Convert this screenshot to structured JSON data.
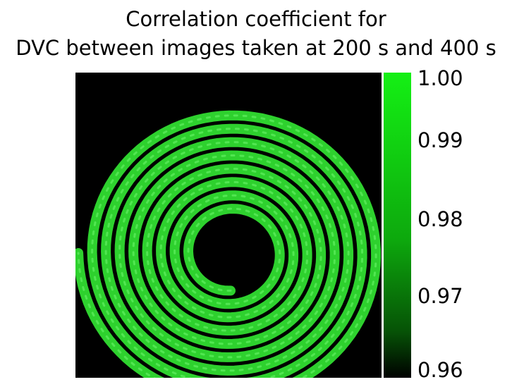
{
  "figure": {
    "title_line1": "Correlation coefficient for",
    "title_line2": "DVC between images taken at 200 s and 400 s"
  },
  "colorbar": {
    "ticks": [
      "1.00",
      "0.99",
      "0.98",
      "0.97",
      "0.96"
    ],
    "min": 0.96,
    "max": 1.0,
    "color_high": "#14f014",
    "color_low": "#000000"
  },
  "colors": {
    "background": "#000000",
    "spiral": "#2ed12e",
    "spiral_highlight": "#5aeb5a"
  }
}
